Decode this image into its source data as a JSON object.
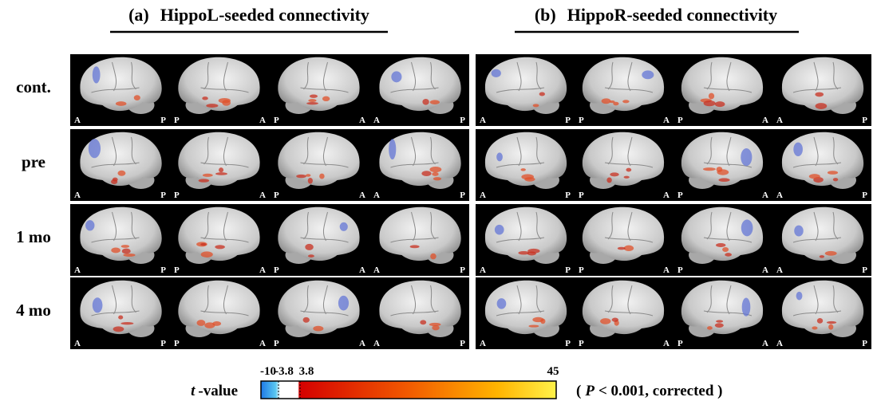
{
  "panels": [
    {
      "label": "(a)",
      "title": "HippoL-seeded connectivity"
    },
    {
      "label": "(b)",
      "title": "HippoR-seeded connectivity"
    }
  ],
  "rows": [
    "cont.",
    "pre",
    "1 mo",
    "4 mo"
  ],
  "views": [
    [
      "A",
      "P"
    ],
    [
      "P",
      "A"
    ],
    [
      "P",
      "A"
    ],
    [
      "A",
      "P"
    ]
  ],
  "colorbar": {
    "label": {
      "symbol": "t",
      "text": "-value"
    },
    "ticks": [
      "-10",
      "-3.8",
      "3.8",
      "45"
    ],
    "note": {
      "open": "(",
      "symbol": "P",
      "text": "< 0.001, corrected )"
    }
  }
}
